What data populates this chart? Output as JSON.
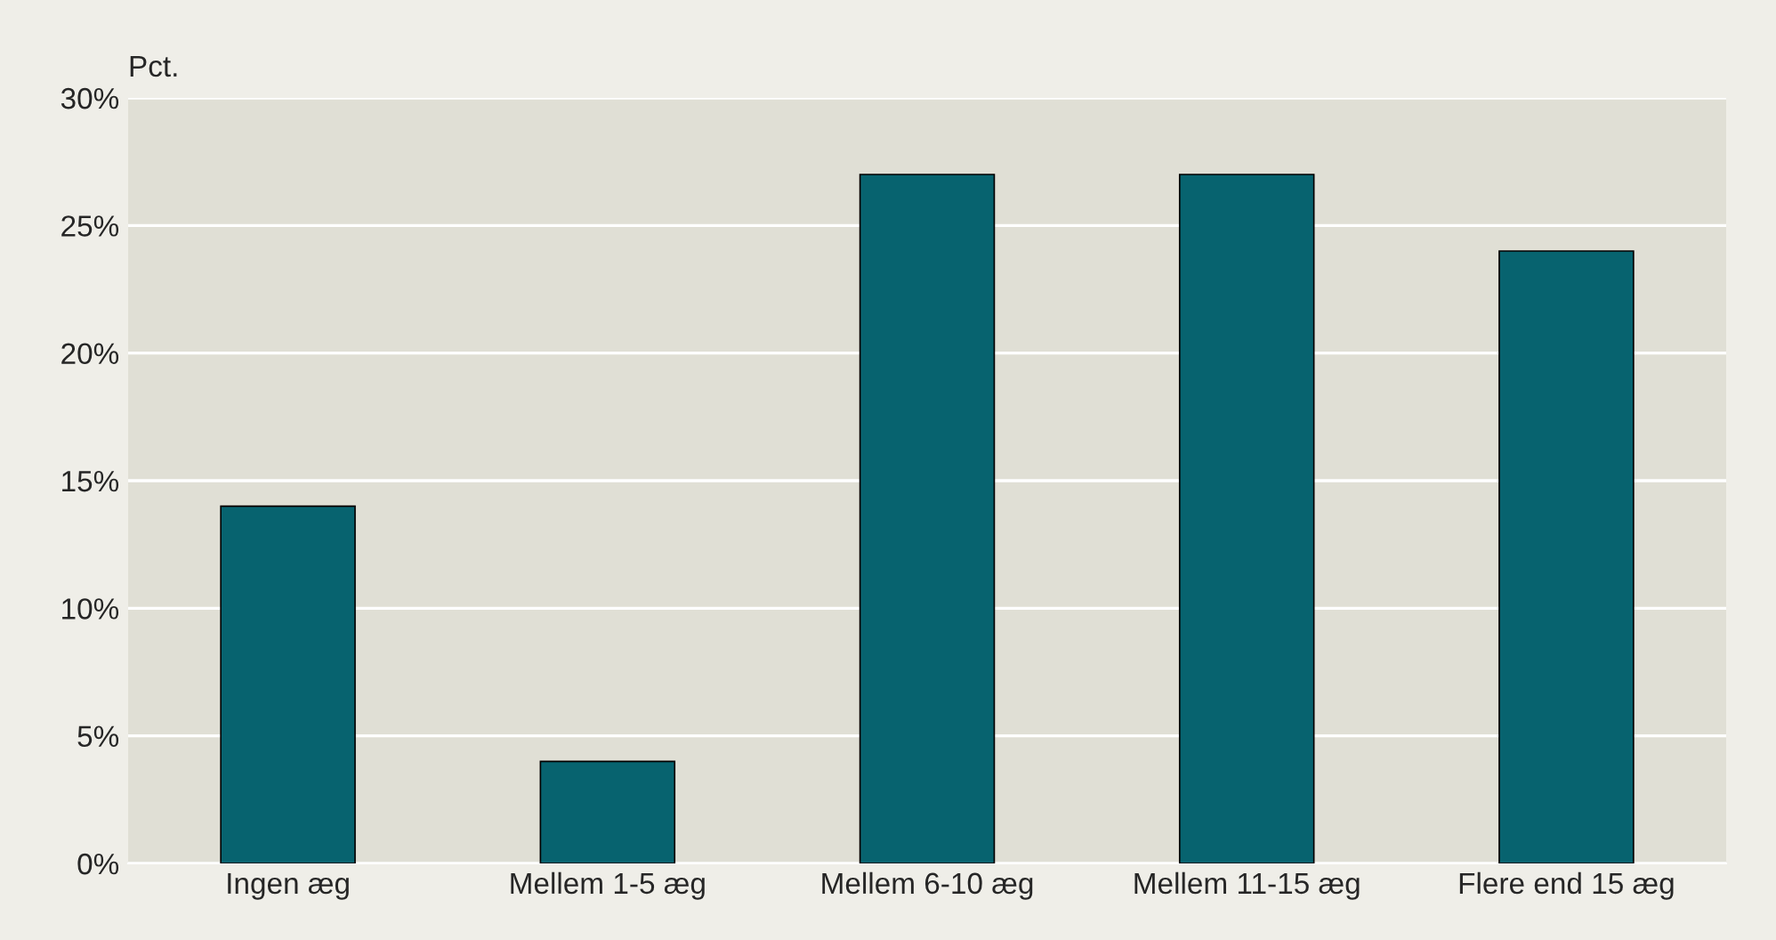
{
  "chart_data": {
    "type": "bar",
    "ylabel": "Pct.",
    "categories": [
      "Ingen æg",
      "Mellem 1-5 æg",
      "Mellem 6-10 æg",
      "Mellem 11-15 æg",
      "Flere end 15 æg"
    ],
    "values": [
      14,
      4,
      27,
      27,
      24
    ],
    "color": "#07636f",
    "ylim": [
      0,
      30
    ],
    "yticks": [
      {
        "value": 0,
        "label": "0%"
      },
      {
        "value": 5,
        "label": "5%"
      },
      {
        "value": 10,
        "label": "10%"
      },
      {
        "value": 15,
        "label": "15%"
      },
      {
        "value": 20,
        "label": "20%"
      },
      {
        "value": 25,
        "label": "25%"
      },
      {
        "value": 30,
        "label": "30%"
      }
    ],
    "grid": "y",
    "legend": false
  }
}
